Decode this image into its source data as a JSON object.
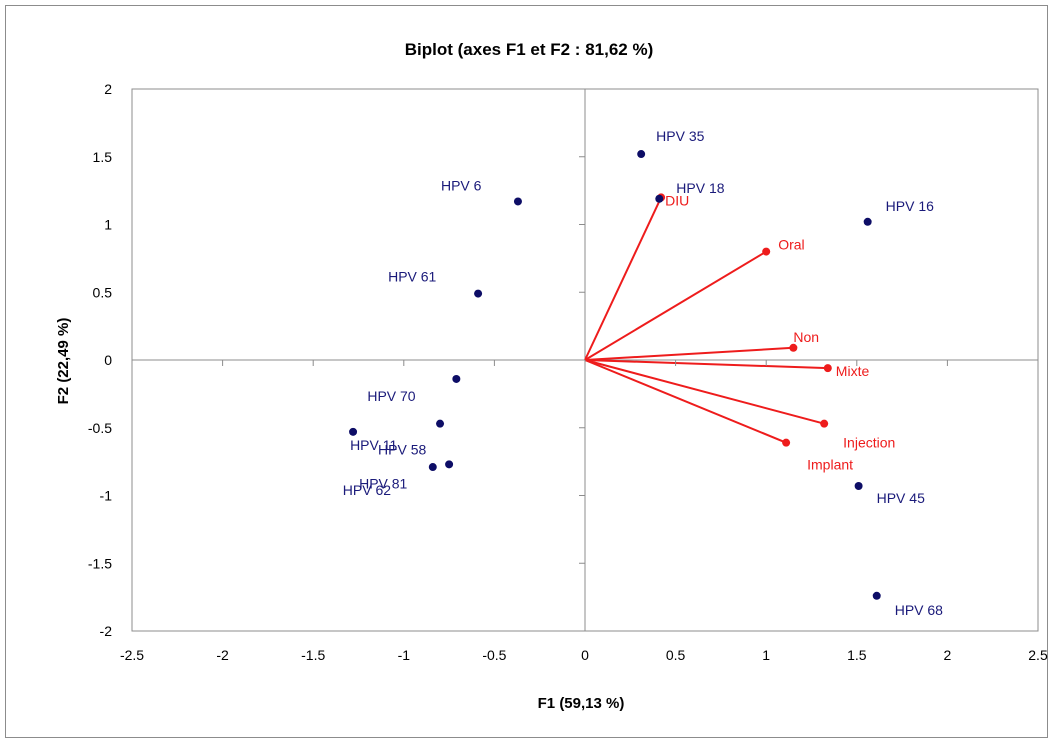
{
  "chart_data": {
    "type": "scatter",
    "title": "Biplot (axes F1 et F2 : 81,62 %)",
    "xlabel": "F1 (59,13 %)",
    "ylabel": "F2 (22,49 %)",
    "xlim": [
      -2.5,
      2.5
    ],
    "ylim": [
      -2,
      2
    ],
    "xticks": [
      "-2.5",
      "-2",
      "-1.5",
      "-1",
      "-0.5",
      "0",
      "0.5",
      "1",
      "1.5",
      "2",
      "2.5"
    ],
    "yticks": [
      "2",
      "1.5",
      "1",
      "0.5",
      "0",
      "-0.5",
      "-1",
      "-1.5",
      "-2"
    ],
    "grid": false,
    "observations": {
      "color": "#0d0d66",
      "points": [
        {
          "label": "HPV 35",
          "x": 0.31,
          "y": 1.52
        },
        {
          "label": "HPV 18",
          "x": 0.41,
          "y": 1.19
        },
        {
          "label": "HPV 16",
          "x": 1.56,
          "y": 1.02
        },
        {
          "label": "HPV 6",
          "x": -0.37,
          "y": 1.17
        },
        {
          "label": "HPV 61",
          "x": -0.59,
          "y": 0.49
        },
        {
          "label": "HPV 70",
          "x": -0.71,
          "y": -0.14
        },
        {
          "label": "HPV 11",
          "x": -1.28,
          "y": -0.53
        },
        {
          "label": "HPV 58",
          "x": -0.8,
          "y": -0.47
        },
        {
          "label": "HPV 81",
          "x": -0.75,
          "y": -0.77
        },
        {
          "label": "HPV 62",
          "x": -0.84,
          "y": -0.79
        },
        {
          "label": "HPV 45",
          "x": 1.51,
          "y": -0.93
        },
        {
          "label": "HPV 68",
          "x": 1.61,
          "y": -1.74
        }
      ]
    },
    "variables": {
      "color": "#ee1c1c",
      "vectors": [
        {
          "label": "DIU",
          "x": 0.42,
          "y": 1.2
        },
        {
          "label": "Oral",
          "x": 1.0,
          "y": 0.8
        },
        {
          "label": "Non",
          "x": 1.15,
          "y": 0.09
        },
        {
          "label": "Mixte",
          "x": 1.34,
          "y": -0.06
        },
        {
          "label": "Injection",
          "x": 1.32,
          "y": -0.47
        },
        {
          "label": "Implant",
          "x": 1.11,
          "y": -0.61
        }
      ]
    }
  }
}
